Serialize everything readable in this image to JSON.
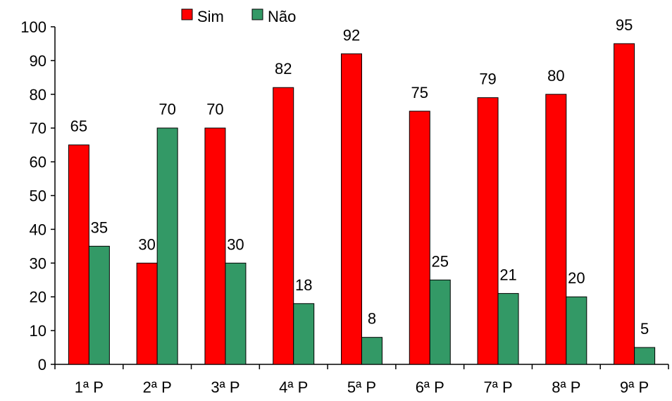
{
  "chart_data": {
    "type": "bar",
    "title": "",
    "xlabel": "",
    "ylabel": "",
    "categories": [
      "1ª P",
      "2ª P",
      "3ª P",
      "4ª P",
      "5ª P",
      "6ª P",
      "7ª P",
      "8ª P",
      "9ª P"
    ],
    "series": [
      {
        "name": "Sim",
        "color": "#FF0000",
        "values": [
          65,
          30,
          70,
          82,
          92,
          75,
          79,
          80,
          95
        ]
      },
      {
        "name": "Não",
        "color": "#339966",
        "values": [
          35,
          70,
          30,
          18,
          8,
          25,
          21,
          20,
          5
        ]
      }
    ],
    "ylim": [
      0,
      100
    ],
    "yticks": [
      "0",
      "10",
      "20",
      "30",
      "40",
      "50",
      "60",
      "70",
      "80",
      "90",
      "100"
    ],
    "grid": false,
    "legend": "top-center",
    "data_labels": true
  }
}
